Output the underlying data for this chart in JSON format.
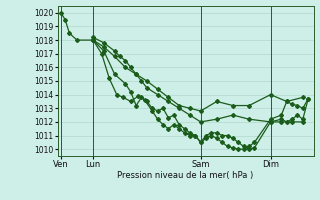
{
  "xlabel": "Pression niveau de la mer( hPa )",
  "ylim": [
    1009.5,
    1020.5
  ],
  "yticks": [
    1010,
    1011,
    1012,
    1013,
    1014,
    1015,
    1016,
    1017,
    1018,
    1019,
    1020
  ],
  "bg_color": "#ceeee8",
  "grid_color": "#b0d8cc",
  "line_color": "#1a5c1a",
  "marker": "D",
  "markersize": 2.0,
  "linewidth": 0.9,
  "xtick_labels": [
    "Ven",
    "Lun",
    "Sam",
    "Dim"
  ],
  "xtick_positions": [
    0,
    30,
    130,
    195
  ],
  "vline_positions": [
    0,
    30,
    130,
    195
  ],
  "xlim": [
    -3,
    235
  ],
  "series": [
    [
      0,
      1020.0,
      4,
      1019.5,
      8,
      1018.5,
      15,
      1018.0,
      30,
      1018.0,
      40,
      1017.5,
      50,
      1016.8,
      60,
      1016.0,
      70,
      1015.5,
      80,
      1015.0,
      90,
      1014.4,
      100,
      1013.8,
      110,
      1013.2,
      120,
      1013.0,
      130,
      1012.8,
      145,
      1013.5,
      160,
      1013.2,
      175,
      1013.2,
      195,
      1014.0,
      210,
      1013.5,
      225,
      1013.8
    ],
    [
      30,
      1018.0,
      40,
      1017.2,
      50,
      1015.5,
      60,
      1014.8,
      65,
      1014.2,
      70,
      1013.2,
      75,
      1013.8,
      80,
      1013.5,
      85,
      1013.0,
      90,
      1012.8,
      95,
      1013.0,
      100,
      1012.3,
      105,
      1012.5,
      110,
      1011.8,
      115,
      1011.5,
      120,
      1011.2,
      125,
      1011.0,
      130,
      1010.5,
      135,
      1011.0,
      140,
      1011.2,
      145,
      1011.2,
      150,
      1011.0,
      155,
      1011.0,
      160,
      1010.8,
      165,
      1010.5,
      170,
      1010.2,
      175,
      1010.0,
      180,
      1010.1,
      195,
      1012.0,
      205,
      1012.2,
      210,
      1012.0,
      215,
      1012.2,
      220,
      1012.5,
      225,
      1012.2,
      230,
      1013.7
    ],
    [
      30,
      1018.2,
      40,
      1017.8,
      50,
      1017.2,
      55,
      1016.8,
      60,
      1016.5,
      65,
      1016.0,
      70,
      1015.5,
      75,
      1015.0,
      80,
      1014.5,
      90,
      1014.0,
      100,
      1013.5,
      110,
      1013.0,
      120,
      1012.5,
      130,
      1012.0,
      145,
      1012.2,
      160,
      1012.5,
      175,
      1012.2,
      195,
      1012.0,
      205,
      1012.0,
      215,
      1012.0,
      225,
      1012.0
    ],
    [
      30,
      1018.0,
      38,
      1017.0,
      45,
      1015.2,
      52,
      1014.0,
      58,
      1013.8,
      65,
      1013.5,
      72,
      1013.9,
      78,
      1013.6,
      85,
      1012.8,
      90,
      1012.2,
      95,
      1011.8,
      100,
      1011.5,
      105,
      1011.8,
      110,
      1011.5,
      115,
      1011.2,
      120,
      1011.0,
      125,
      1011.0,
      130,
      1010.5,
      135,
      1010.8,
      140,
      1011.0,
      145,
      1010.8,
      150,
      1010.5,
      155,
      1010.2,
      160,
      1010.1,
      165,
      1010.0,
      170,
      1010.0,
      175,
      1010.2,
      180,
      1010.5,
      195,
      1012.2,
      205,
      1012.5,
      210,
      1013.5,
      215,
      1013.3,
      220,
      1013.2,
      225,
      1013.0,
      230,
      1013.7
    ]
  ]
}
